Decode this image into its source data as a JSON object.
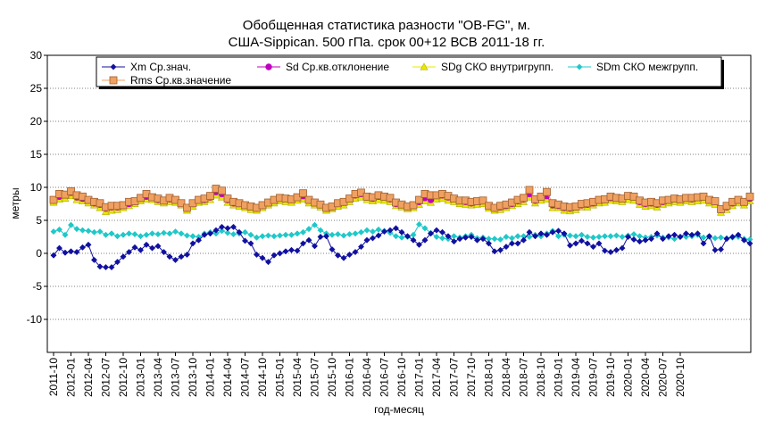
{
  "chart_data": {
    "type": "line",
    "title_line1": "Обобщенная статистика разности \"OB-FG\", м.",
    "title_line2": "США-Sippican. 500 гПа. срок 00+12 ВСВ 2011-18 гг.",
    "xlabel": "год-месяц",
    "ylabel": "метры",
    "ylim": [
      -15,
      30
    ],
    "y_ticks": [
      30,
      25,
      20,
      15,
      10,
      5,
      0,
      -5,
      -10
    ],
    "grid": "horizontal, dotted",
    "legend_position": "top",
    "x_tick_labels": [
      "2011-10",
      "2012-01",
      "2012-04",
      "2012-07",
      "2012-10",
      "2013-01",
      "2013-04",
      "2013-07",
      "2013-10",
      "2014-01",
      "2014-04",
      "2014-07",
      "2014-10",
      "2015-01",
      "2015-04",
      "2015-07",
      "2015-10",
      "2016-01",
      "2016-04",
      "2016-07",
      "2016-10",
      "2017-01",
      "2017-04",
      "2017-07",
      "2017-10",
      "2018-01",
      "2018-04",
      "2018-07",
      "2018-10",
      "2019-01",
      "2019-04",
      "2019-07",
      "2019-10",
      "2020-01",
      "2020-04",
      "2020-07",
      "2020-10"
    ],
    "series": [
      {
        "name": "Xm Ср.знач.",
        "color": "#1010a0",
        "marker": "diamond",
        "values": [
          -0.3,
          0.8,
          0.1,
          0.3,
          0.2,
          0.9,
          1.3,
          -1.0,
          -2.0,
          -2.1,
          -2.1,
          -1.3,
          -0.5,
          0.2,
          0.9,
          0.5,
          1.3,
          0.8,
          1.1,
          0.2,
          -0.5,
          -1.0,
          -0.5,
          -0.2,
          1.5,
          2.0,
          2.8,
          3.0,
          3.5,
          4.0,
          3.8,
          4.0,
          3.2,
          1.9,
          1.5,
          -0.2,
          -0.7,
          -1.3,
          -0.3,
          0.0,
          0.3,
          0.5,
          0.4,
          1.5,
          2.0,
          1.1,
          2.5,
          2.6,
          0.6,
          -0.3,
          -0.7,
          -0.2,
          0.2,
          1.0,
          2.0,
          2.3,
          2.7,
          3.3,
          3.5,
          3.8,
          3.2,
          2.6,
          2.0,
          1.3,
          2.0,
          3.0,
          3.5,
          3.2,
          2.6,
          1.8,
          2.2,
          2.4,
          2.5,
          2.0,
          2.2,
          1.5,
          0.3,
          0.5,
          1.0,
          1.5,
          1.5,
          2.0,
          3.2,
          2.6,
          3.0,
          2.8,
          3.2,
          3.4,
          3.0,
          1.2,
          1.5,
          1.9,
          1.5,
          1.0,
          1.5,
          0.4,
          0.2,
          0.5,
          0.8,
          2.5,
          2.1,
          1.8,
          2.0,
          2.2,
          3.0,
          2.2,
          2.6,
          2.8,
          2.5,
          3.0,
          2.8,
          3.0,
          1.5,
          2.6,
          0.5,
          0.6,
          2.2,
          2.5,
          2.8,
          2.0,
          1.5
        ]
      },
      {
        "name": "Sd Ср.кв.отклонение",
        "color": "#c000c0",
        "marker": "circle",
        "values": [
          8.0,
          8.6,
          8.8,
          9.2,
          8.5,
          8.3,
          8.0,
          7.6,
          7.4,
          6.8,
          7.0,
          7.0,
          7.2,
          7.5,
          7.8,
          8.3,
          8.6,
          8.4,
          8.1,
          7.9,
          8.2,
          8.0,
          7.6,
          6.8,
          7.5,
          8.0,
          8.1,
          8.5,
          9.3,
          9.0,
          8.1,
          7.6,
          7.5,
          7.2,
          7.0,
          6.8,
          7.2,
          7.6,
          8.0,
          8.3,
          8.2,
          8.1,
          8.4,
          8.7,
          8.0,
          7.6,
          7.3,
          6.8,
          7.0,
          7.5,
          7.7,
          8.2,
          8.8,
          9.0,
          8.5,
          8.3,
          8.6,
          8.5,
          8.2,
          7.5,
          7.3,
          7.0,
          7.2,
          7.8,
          8.4,
          8.1,
          8.7,
          8.8,
          8.5,
          8.2,
          7.9,
          7.8,
          7.6,
          7.8,
          7.9,
          7.1,
          6.8,
          7.0,
          7.2,
          7.5,
          7.9,
          8.2,
          9.0,
          8.0,
          8.5,
          8.7,
          7.3,
          7.2,
          6.9,
          6.8,
          7.0,
          7.3,
          7.4,
          7.6,
          8.0,
          8.1,
          8.4,
          8.3,
          8.2,
          8.6,
          8.5,
          7.8,
          7.5,
          7.6,
          7.4,
          7.8,
          8.0,
          8.2,
          8.1,
          8.3,
          8.2,
          8.4,
          8.5,
          8.0,
          7.8,
          6.6,
          7.0,
          7.6,
          8.0,
          7.7,
          8.3
        ]
      },
      {
        "name": "SDg СКО внутригрупп.",
        "color": "#e8e800",
        "marker": "triangle",
        "values": [
          7.7,
          8.2,
          8.3,
          8.7,
          8.1,
          7.9,
          7.6,
          7.3,
          6.9,
          6.3,
          6.5,
          6.6,
          6.9,
          7.2,
          7.5,
          7.9,
          8.2,
          8.1,
          7.8,
          7.6,
          7.8,
          7.7,
          7.3,
          6.5,
          7.1,
          7.7,
          7.8,
          8.1,
          8.8,
          8.5,
          7.7,
          7.3,
          7.1,
          6.9,
          6.6,
          6.5,
          6.9,
          7.3,
          7.6,
          7.9,
          7.8,
          7.7,
          8.0,
          8.2,
          7.6,
          7.3,
          7.0,
          6.5,
          6.7,
          7.1,
          7.3,
          7.8,
          8.3,
          8.5,
          8.1,
          7.9,
          8.1,
          8.0,
          7.8,
          7.2,
          7.0,
          6.7,
          6.9,
          7.4,
          7.9,
          7.7,
          8.2,
          8.3,
          8.0,
          7.8,
          7.5,
          7.4,
          7.3,
          7.4,
          7.5,
          6.8,
          6.5,
          6.6,
          6.9,
          7.2,
          7.5,
          7.8,
          8.5,
          7.6,
          8.0,
          8.2,
          6.9,
          6.9,
          6.5,
          6.4,
          6.6,
          7.0,
          7.0,
          7.3,
          7.6,
          7.7,
          8.0,
          7.9,
          7.8,
          8.1,
          8.0,
          7.4,
          7.1,
          7.2,
          7.0,
          7.4,
          7.6,
          7.8,
          7.7,
          7.9,
          7.8,
          7.9,
          8.0,
          7.6,
          7.4,
          6.2,
          6.6,
          7.2,
          7.6,
          7.3,
          7.9
        ]
      },
      {
        "name": "SDm СКО межгрупп.",
        "color": "#20c8c8",
        "marker": "diamond",
        "values": [
          3.3,
          3.6,
          2.8,
          4.3,
          3.7,
          3.5,
          3.4,
          3.2,
          3.3,
          2.8,
          3.0,
          2.6,
          2.8,
          3.0,
          2.9,
          2.6,
          2.8,
          3.0,
          2.9,
          3.1,
          3.0,
          3.3,
          3.0,
          2.7,
          2.6,
          2.5,
          3.0,
          3.2,
          3.0,
          3.4,
          3.1,
          2.9,
          3.0,
          3.2,
          2.8,
          2.4,
          2.6,
          2.7,
          2.6,
          2.7,
          2.8,
          2.8,
          3.0,
          3.2,
          3.7,
          4.3,
          3.5,
          3.0,
          2.8,
          2.9,
          2.7,
          2.9,
          3.0,
          3.2,
          3.5,
          3.3,
          3.6,
          3.4,
          3.1,
          2.6,
          2.4,
          2.5,
          2.8,
          4.4,
          3.8,
          3.1,
          2.5,
          2.3,
          2.2,
          2.6,
          2.4,
          2.6,
          2.8,
          2.3,
          2.4,
          2.2,
          2.2,
          2.1,
          2.5,
          2.3,
          2.6,
          2.6,
          2.5,
          2.8,
          2.6,
          3.0,
          3.4,
          2.6,
          2.8,
          2.7,
          2.6,
          2.8,
          2.5,
          2.4,
          2.5,
          2.6,
          2.6,
          2.7,
          2.5,
          2.7,
          2.9,
          2.6,
          2.4,
          2.5,
          2.7,
          2.4,
          2.4,
          2.2,
          2.5,
          2.5,
          2.6,
          2.8,
          2.4,
          2.5,
          2.3,
          2.4,
          2.3,
          2.4,
          2.5,
          2.2,
          2.1
        ]
      },
      {
        "name": "Rms Ср.кв.значение",
        "color": "#f0a060",
        "marker": "square",
        "values": [
          8.1,
          9.0,
          8.9,
          9.4,
          8.8,
          8.6,
          8.1,
          7.8,
          7.6,
          7.0,
          7.2,
          7.2,
          7.3,
          7.8,
          7.9,
          8.4,
          9.0,
          8.5,
          8.3,
          8.0,
          8.4,
          8.1,
          7.6,
          6.9,
          7.6,
          8.1,
          8.3,
          8.7,
          9.8,
          9.5,
          8.3,
          7.8,
          7.6,
          7.3,
          7.1,
          6.9,
          7.3,
          7.7,
          8.1,
          8.4,
          8.3,
          8.2,
          8.5,
          9.1,
          8.1,
          7.7,
          7.4,
          6.9,
          7.1,
          7.6,
          7.8,
          8.3,
          9.0,
          9.2,
          8.6,
          8.5,
          8.8,
          8.6,
          8.4,
          7.7,
          7.4,
          7.1,
          7.3,
          8.1,
          9.0,
          8.8,
          8.8,
          9.0,
          8.7,
          8.3,
          8.0,
          8.0,
          7.8,
          7.9,
          8.0,
          7.2,
          6.9,
          7.2,
          7.4,
          7.7,
          8.1,
          8.4,
          9.6,
          8.2,
          8.6,
          9.3,
          7.6,
          7.4,
          7.1,
          7.0,
          7.1,
          7.5,
          7.6,
          7.8,
          8.1,
          8.2,
          8.6,
          8.4,
          8.3,
          8.7,
          8.6,
          8.0,
          7.7,
          7.8,
          7.6,
          8.0,
          8.1,
          8.3,
          8.2,
          8.4,
          8.4,
          8.5,
          8.6,
          8.1,
          7.9,
          6.7,
          7.2,
          7.8,
          8.1,
          7.8,
          8.6
        ]
      }
    ]
  }
}
